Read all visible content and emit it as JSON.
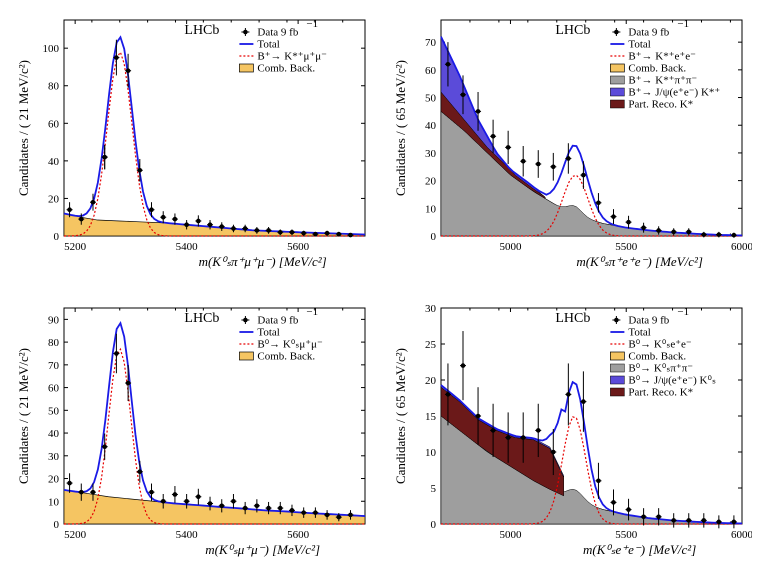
{
  "experiment": "LHCb",
  "lumi": "Data 9 fb",
  "lumi_exp": "−1",
  "total_label": "Total",
  "comb_label": "Comb. Back.",
  "colors": {
    "total": "#1a1ae6",
    "sig": "#e60000",
    "comb": "#f5c562",
    "grey": "#9e9e9e",
    "purp": "#5b4bd9",
    "dkrd": "#6b1919",
    "marker": "#000000",
    "axis": "#000000"
  },
  "panels": [
    {
      "id": "tl",
      "yTitle": "Candidates / ( 21 MeV/c²)",
      "xTitle": "m(K⁰ₛπ⁺μ⁺μ⁻) [MeV/c²]",
      "xlim": [
        5180,
        5720
      ],
      "ylim": [
        0,
        115
      ],
      "yticks": [
        0,
        20,
        40,
        60,
        80,
        100
      ],
      "xticks": [
        5200,
        5400,
        5600
      ],
      "sig_lab": "B⁺→ K*⁺μ⁺μ⁻",
      "bg": [
        [
          5180,
          12
        ],
        [
          5210,
          10
        ],
        [
          5240,
          8.5
        ],
        [
          5280,
          8
        ],
        [
          5320,
          7.5
        ],
        [
          5360,
          7
        ],
        [
          5400,
          6
        ],
        [
          5440,
          5
        ],
        [
          5480,
          4
        ],
        [
          5520,
          3
        ],
        [
          5560,
          2.5
        ],
        [
          5600,
          2
        ],
        [
          5650,
          1.5
        ],
        [
          5720,
          0.8
        ]
      ],
      "sig_peak": {
        "mu": 5280,
        "sigma": 22,
        "amp": 98
      },
      "pts": [
        [
          5190,
          14,
          4
        ],
        [
          5211,
          9,
          3
        ],
        [
          5232,
          18,
          4.5
        ],
        [
          5253,
          42,
          6.5
        ],
        [
          5253,
          42,
          6.5
        ],
        [
          5274,
          95,
          9.5
        ],
        [
          5295,
          88,
          9
        ],
        [
          5316,
          35,
          6
        ],
        [
          5337,
          14,
          4
        ],
        [
          5358,
          10,
          3.2
        ],
        [
          5379,
          9,
          3
        ],
        [
          5400,
          6,
          2.5
        ],
        [
          5421,
          8,
          3
        ],
        [
          5442,
          6,
          2.5
        ],
        [
          5463,
          5,
          2.3
        ],
        [
          5484,
          4,
          2
        ],
        [
          5505,
          4,
          2
        ],
        [
          5526,
          3,
          1.8
        ],
        [
          5547,
          3,
          1.8
        ],
        [
          5568,
          2,
          1.5
        ],
        [
          5589,
          2,
          1.5
        ],
        [
          5610,
          1.5,
          1.3
        ],
        [
          5631,
          1,
          1.2
        ],
        [
          5652,
          1.5,
          1.3
        ],
        [
          5673,
          1,
          1.2
        ],
        [
          5694,
          0.5,
          1
        ]
      ]
    },
    {
      "id": "tr",
      "yTitle": "Candidates / ( 65 MeV/c²)",
      "xTitle": "m(K⁰ₛπ⁺e⁺e⁻) [MeV/c²]",
      "xlim": [
        4700,
        6000
      ],
      "ylim": [
        0,
        78
      ],
      "yticks": [
        0,
        10,
        20,
        30,
        40,
        50,
        60,
        70
      ],
      "xticks": [
        5000,
        5500,
        6000
      ],
      "sig_lab": "B⁺→ K*⁺e⁺e⁻",
      "extra": [
        [
          "grey",
          "B⁺→ K*⁺π⁺π⁻"
        ],
        [
          "purp",
          "B⁺→ J/ψ(e⁺e⁻) K*⁺"
        ],
        [
          "dkrd",
          "Part. Reco. K*"
        ]
      ],
      "bg": [
        [
          4700,
          45
        ],
        [
          4800,
          38
        ],
        [
          4900,
          30
        ],
        [
          5000,
          22
        ],
        [
          5100,
          16
        ],
        [
          5200,
          11
        ],
        [
          5300,
          7
        ],
        [
          5400,
          4.5
        ],
        [
          5500,
          3
        ],
        [
          5600,
          2
        ],
        [
          5700,
          1.3
        ],
        [
          5800,
          0.8
        ],
        [
          5900,
          0.4
        ],
        [
          6000,
          0.2
        ]
      ],
      "purp_top": [
        [
          4700,
          72
        ],
        [
          4780,
          58
        ],
        [
          4860,
          42
        ],
        [
          4940,
          30
        ],
        [
          5020,
          22
        ],
        [
          5100,
          17
        ],
        [
          5150,
          14
        ]
      ],
      "dkrd_top": [
        [
          4700,
          52
        ],
        [
          4800,
          42
        ],
        [
          4900,
          32
        ],
        [
          5000,
          24
        ],
        [
          5080,
          19
        ],
        [
          5150,
          14
        ]
      ],
      "grey_pk": {
        "mu": 5280,
        "sigma": 30,
        "amp": 3
      },
      "sig_peak": {
        "mu": 5280,
        "sigma": 55,
        "amp": 22
      },
      "pts": [
        [
          4730,
          62,
          8
        ],
        [
          4795,
          51,
          7
        ],
        [
          4860,
          45,
          7
        ],
        [
          4925,
          36,
          6
        ],
        [
          4990,
          32,
          6
        ],
        [
          5055,
          27,
          5.5
        ],
        [
          5120,
          26,
          5
        ],
        [
          5185,
          25,
          5
        ],
        [
          5250,
          28,
          5.5
        ],
        [
          5315,
          22,
          5
        ],
        [
          5380,
          12,
          3.5
        ],
        [
          5445,
          7,
          2.7
        ],
        [
          5510,
          5,
          2.3
        ],
        [
          5575,
          3,
          1.8
        ],
        [
          5640,
          2,
          1.5
        ],
        [
          5705,
          1.5,
          1.3
        ],
        [
          5770,
          1.5,
          1.3
        ],
        [
          5835,
          0.5,
          1
        ],
        [
          5900,
          0.5,
          1
        ],
        [
          5965,
          0.3,
          0.9
        ]
      ]
    },
    {
      "id": "bl",
      "yTitle": "Candidates / ( 21 MeV/c²)",
      "xTitle": "m(K⁰ₛμ⁺μ⁻) [MeV/c²]",
      "xlim": [
        5180,
        5720
      ],
      "ylim": [
        0,
        95
      ],
      "yticks": [
        0,
        10,
        20,
        30,
        40,
        50,
        60,
        70,
        80,
        90
      ],
      "xticks": [
        5200,
        5400,
        5600
      ],
      "sig_lab": "B⁰→ K⁰ₛμ⁺μ⁻",
      "bg": [
        [
          5180,
          15
        ],
        [
          5220,
          13.5
        ],
        [
          5260,
          12
        ],
        [
          5300,
          11
        ],
        [
          5340,
          10
        ],
        [
          5380,
          9
        ],
        [
          5420,
          8.3
        ],
        [
          5460,
          7.5
        ],
        [
          5500,
          6.8
        ],
        [
          5540,
          6
        ],
        [
          5580,
          5.5
        ],
        [
          5620,
          4.8
        ],
        [
          5660,
          4.3
        ],
        [
          5720,
          3.5
        ]
      ],
      "sig_peak": {
        "mu": 5280,
        "sigma": 20,
        "amp": 77
      },
      "pts": [
        [
          5190,
          18,
          4.3
        ],
        [
          5211,
          14,
          3.8
        ],
        [
          5232,
          14,
          3.8
        ],
        [
          5253,
          34,
          5.8
        ],
        [
          5274,
          75,
          8.7
        ],
        [
          5295,
          62,
          7.9
        ],
        [
          5316,
          23,
          4.8
        ],
        [
          5337,
          14,
          3.8
        ],
        [
          5358,
          10,
          3.2
        ],
        [
          5379,
          13,
          3.7
        ],
        [
          5400,
          10,
          3.2
        ],
        [
          5421,
          12,
          3.5
        ],
        [
          5442,
          9,
          3
        ],
        [
          5463,
          8,
          2.9
        ],
        [
          5484,
          10,
          3.2
        ],
        [
          5505,
          7,
          2.7
        ],
        [
          5526,
          8,
          2.9
        ],
        [
          5547,
          7,
          2.7
        ],
        [
          5568,
          7,
          2.7
        ],
        [
          5589,
          6,
          2.5
        ],
        [
          5610,
          5,
          2.3
        ],
        [
          5631,
          5,
          2.3
        ],
        [
          5652,
          4,
          2.1
        ],
        [
          5673,
          3,
          1.8
        ],
        [
          5694,
          4,
          2.1
        ]
      ]
    },
    {
      "id": "br",
      "yTitle": "Candidates / ( 65 MeV/c²)",
      "xTitle": "m(K⁰ₛe⁺e⁻) [MeV/c²]",
      "xlim": [
        4700,
        6000
      ],
      "ylim": [
        0,
        30
      ],
      "yticks": [
        0,
        5,
        10,
        15,
        20,
        25,
        30
      ],
      "xticks": [
        5000,
        5500,
        6000
      ],
      "sig_lab": "B⁰→ K⁰ₛe⁺e⁻",
      "extra": [
        [
          "grey",
          "B⁰→ K⁰ₛπ⁺π⁻"
        ],
        [
          "purp",
          "B⁰→ J/ψ(e⁺e⁻) K⁰ₛ"
        ],
        [
          "dkrd",
          "Part. Reco. K*"
        ]
      ],
      "bg": [
        [
          4700,
          15
        ],
        [
          4800,
          12.5
        ],
        [
          4900,
          10
        ],
        [
          5000,
          8
        ],
        [
          5100,
          6
        ],
        [
          5200,
          4.3
        ],
        [
          5300,
          3
        ],
        [
          5400,
          2
        ],
        [
          5500,
          1.3
        ],
        [
          5600,
          0.8
        ],
        [
          5700,
          0.5
        ],
        [
          5800,
          0.3
        ],
        [
          5900,
          0.15
        ],
        [
          6000,
          0.08
        ]
      ],
      "dkrd_top": [
        [
          4700,
          19
        ],
        [
          4780,
          17
        ],
        [
          4860,
          14.5
        ],
        [
          4940,
          13
        ],
        [
          5020,
          12
        ],
        [
          5100,
          11.7
        ],
        [
          5170,
          10.5
        ],
        [
          5230,
          6.5
        ]
      ],
      "purp_top": [
        [
          4700,
          19.3
        ],
        [
          4780,
          17.2
        ],
        [
          4860,
          14.7
        ],
        [
          4940,
          13.2
        ],
        [
          5020,
          12.2
        ],
        [
          5100,
          11.9
        ],
        [
          5170,
          10.7
        ],
        [
          5230,
          6.7
        ]
      ],
      "grey_pk": {
        "mu": 5280,
        "sigma": 35,
        "amp": 1.5
      },
      "sig_peak": {
        "mu": 5275,
        "sigma": 50,
        "amp": 15
      },
      "pts": [
        [
          4730,
          18,
          4.3
        ],
        [
          4795,
          22,
          4.8
        ],
        [
          4860,
          15,
          4
        ],
        [
          4925,
          13,
          3.7
        ],
        [
          4990,
          12,
          3.5
        ],
        [
          5055,
          12,
          3.5
        ],
        [
          5120,
          13,
          3.7
        ],
        [
          5185,
          10,
          3.2
        ],
        [
          5250,
          18,
          4.3
        ],
        [
          5315,
          17,
          4.2
        ],
        [
          5380,
          6,
          2.5
        ],
        [
          5445,
          3,
          1.8
        ],
        [
          5510,
          2,
          1.5
        ],
        [
          5575,
          1,
          1.2
        ],
        [
          5640,
          1,
          1.2
        ],
        [
          5705,
          0.5,
          1
        ],
        [
          5770,
          0.5,
          1
        ],
        [
          5835,
          0.5,
          1
        ],
        [
          5900,
          0.3,
          0.9
        ],
        [
          5965,
          0.3,
          0.9
        ]
      ]
    }
  ]
}
